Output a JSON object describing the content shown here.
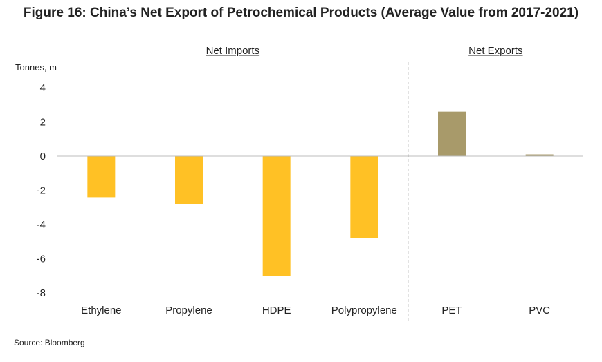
{
  "title": "Figure 16: China’s Net Export of Petrochemical Products (Average Value from 2017-2021)",
  "source": "Source: Bloomberg",
  "chart_data": {
    "type": "bar",
    "ylabel": "Tonnes, m",
    "xlabel": "",
    "ylim": [
      -8,
      4
    ],
    "yticks": [
      4,
      2,
      0,
      -2,
      -4,
      -6,
      -8
    ],
    "grid": false,
    "categories": [
      "Ethylene",
      "Propylene",
      "HDPE",
      "Polypropylene",
      "PET",
      "PVC"
    ],
    "values": [
      -2.4,
      -2.8,
      -7.0,
      -4.8,
      2.6,
      0.1
    ],
    "groups": [
      {
        "label": "Net Imports",
        "categories": [
          "Ethylene",
          "Propylene",
          "HDPE",
          "Polypropylene"
        ],
        "color": "#FFC125"
      },
      {
        "label": "Net Exports",
        "categories": [
          "PET",
          "PVC"
        ],
        "color": "#A89A6A"
      }
    ],
    "divider_after_category": "Polypropylene"
  }
}
